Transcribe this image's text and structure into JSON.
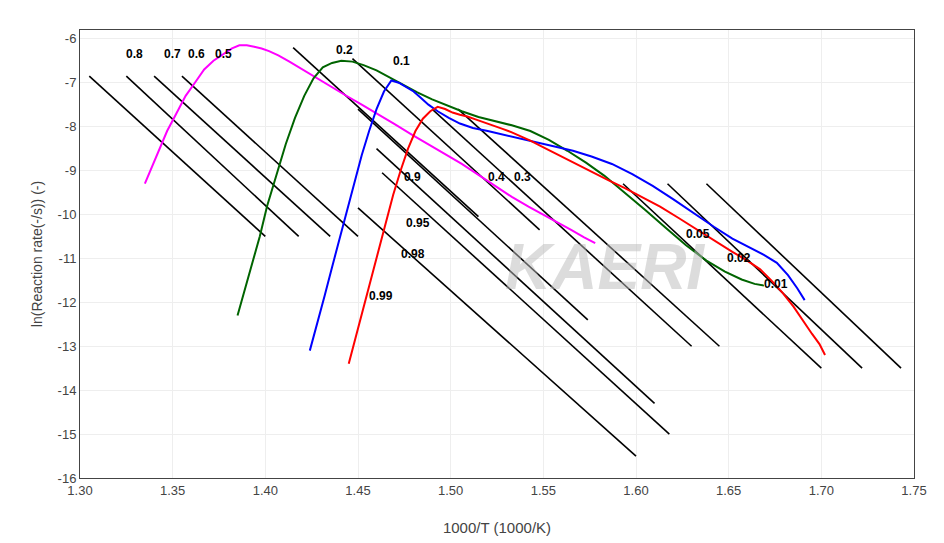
{
  "chart_data": {
    "type": "line",
    "xlabel": "1000/T (1000/K)",
    "ylabel": "ln(Reaction rate(-/s)) (-)",
    "xlim": [
      1.3,
      1.75
    ],
    "ylim": [
      -16,
      -5.8
    ],
    "xticks": [
      {
        "value": 1.3,
        "label": "1.30"
      },
      1.35,
      {
        "value": 1.4,
        "label": "1.40"
      },
      1.45,
      {
        "value": 1.5,
        "label": "1.50"
      },
      1.55,
      {
        "value": 1.6,
        "label": "1.60"
      },
      1.65,
      {
        "value": 1.7,
        "label": "1.70"
      },
      1.75
    ],
    "yticks": [
      -16,
      -15,
      -14,
      -13,
      -12,
      -11,
      -10,
      -9,
      -8,
      -7,
      -6
    ],
    "grid": true,
    "series": [
      {
        "color": "#ff00ff",
        "x": [
          1.335,
          1.338,
          1.342,
          1.347,
          1.352,
          1.357,
          1.362,
          1.367,
          1.372,
          1.377,
          1.382,
          1.386,
          1.39,
          1.394,
          1.398,
          1.402,
          1.407,
          1.413,
          1.42,
          1.427,
          1.435,
          1.443,
          1.452,
          1.461,
          1.47,
          1.479,
          1.488,
          1.497,
          1.506,
          1.515,
          1.524,
          1.533,
          1.542,
          1.55,
          1.558,
          1.565,
          1.572,
          1.578
        ],
        "values": [
          -9.3,
          -9.0,
          -8.6,
          -8.1,
          -7.7,
          -7.3,
          -7.0,
          -6.7,
          -6.5,
          -6.35,
          -6.22,
          -6.15,
          -6.15,
          -6.18,
          -6.22,
          -6.28,
          -6.38,
          -6.52,
          -6.7,
          -6.88,
          -7.08,
          -7.28,
          -7.5,
          -7.72,
          -7.95,
          -8.18,
          -8.4,
          -8.62,
          -8.85,
          -9.1,
          -9.35,
          -9.6,
          -9.82,
          -10.0,
          -10.18,
          -10.35,
          -10.52,
          -10.65
        ]
      },
      {
        "color": "#006400",
        "x": [
          1.385,
          1.389,
          1.393,
          1.397,
          1.401,
          1.406,
          1.411,
          1.416,
          1.421,
          1.426,
          1.431,
          1.436,
          1.441,
          1.447,
          1.453,
          1.46,
          1.467,
          1.474,
          1.482,
          1.49,
          1.498,
          1.506,
          1.515,
          1.524,
          1.533,
          1.543,
          1.553,
          1.563,
          1.573,
          1.583,
          1.594,
          1.605,
          1.616,
          1.627,
          1.638,
          1.648,
          1.657,
          1.664,
          1.669
        ],
        "values": [
          -12.3,
          -11.7,
          -11.1,
          -10.5,
          -9.8,
          -9.1,
          -8.4,
          -7.8,
          -7.3,
          -6.9,
          -6.65,
          -6.55,
          -6.5,
          -6.52,
          -6.6,
          -6.72,
          -6.88,
          -7.05,
          -7.22,
          -7.38,
          -7.52,
          -7.65,
          -7.78,
          -7.88,
          -7.97,
          -8.1,
          -8.3,
          -8.55,
          -8.82,
          -9.12,
          -9.5,
          -9.9,
          -10.3,
          -10.7,
          -11.05,
          -11.3,
          -11.48,
          -11.58,
          -11.62
        ]
      },
      {
        "color": "#0000ff",
        "x": [
          1.424,
          1.428,
          1.432,
          1.436,
          1.44,
          1.444,
          1.448,
          1.452,
          1.456,
          1.46,
          1.464,
          1.468,
          1.472,
          1.476,
          1.48,
          1.484,
          1.488,
          1.493,
          1.499,
          1.505,
          1.512,
          1.52,
          1.528,
          1.537,
          1.546,
          1.556,
          1.566,
          1.576,
          1.587,
          1.598,
          1.609,
          1.62,
          1.631,
          1.642,
          1.652,
          1.661,
          1.669,
          1.676,
          1.682,
          1.687,
          1.691
        ],
        "values": [
          -13.1,
          -12.5,
          -11.85,
          -11.2,
          -10.55,
          -9.9,
          -9.25,
          -8.65,
          -8.1,
          -7.6,
          -7.2,
          -6.95,
          -7.0,
          -7.1,
          -7.2,
          -7.35,
          -7.5,
          -7.65,
          -7.8,
          -7.93,
          -8.03,
          -8.1,
          -8.18,
          -8.27,
          -8.35,
          -8.45,
          -8.55,
          -8.68,
          -8.85,
          -9.08,
          -9.35,
          -9.65,
          -9.97,
          -10.28,
          -10.55,
          -10.75,
          -10.92,
          -11.1,
          -11.38,
          -11.68,
          -11.95
        ]
      },
      {
        "color": "#ff0000",
        "x": [
          1.445,
          1.449,
          1.453,
          1.457,
          1.461,
          1.465,
          1.469,
          1.473,
          1.477,
          1.481,
          1.485,
          1.489,
          1.493,
          1.497,
          1.501,
          1.505,
          1.509,
          1.513,
          1.518,
          1.523,
          1.528,
          1.533,
          1.538,
          1.543,
          1.549,
          1.555,
          1.562,
          1.569,
          1.577,
          1.585,
          1.594,
          1.603,
          1.613,
          1.623,
          1.633,
          1.643,
          1.652,
          1.66,
          1.667,
          1.673,
          1.679,
          1.685,
          1.69,
          1.695,
          1.699,
          1.702
        ],
        "values": [
          -13.4,
          -12.75,
          -12.1,
          -11.45,
          -10.8,
          -10.15,
          -9.55,
          -9.0,
          -8.5,
          -8.1,
          -7.82,
          -7.65,
          -7.55,
          -7.6,
          -7.68,
          -7.73,
          -7.77,
          -7.83,
          -7.9,
          -7.97,
          -8.05,
          -8.13,
          -8.22,
          -8.32,
          -8.45,
          -8.58,
          -8.72,
          -8.88,
          -9.05,
          -9.22,
          -9.4,
          -9.6,
          -9.82,
          -10.08,
          -10.35,
          -10.62,
          -10.85,
          -11.05,
          -11.25,
          -11.5,
          -11.78,
          -12.1,
          -12.42,
          -12.72,
          -12.95,
          -13.2
        ]
      }
    ],
    "iso_lines": [
      {
        "label": "0.8",
        "color": "#000000",
        "x": [
          1.305,
          1.4
        ],
        "values": [
          -6.85,
          -10.5
        ],
        "label_x": 1.324,
        "label_y": -6.35
      },
      {
        "label": "0.7",
        "color": "#000000",
        "x": [
          1.325,
          1.418
        ],
        "values": [
          -6.85,
          -10.5
        ],
        "label_x": 1.344,
        "label_y": -6.35
      },
      {
        "label": "0.6",
        "color": "#000000",
        "x": [
          1.34,
          1.435
        ],
        "values": [
          -6.85,
          -10.5
        ],
        "label_x": 1.357,
        "label_y": -6.35
      },
      {
        "label": "0.5",
        "color": "#000000",
        "x": [
          1.355,
          1.45
        ],
        "values": [
          -6.85,
          -10.5
        ],
        "label_x": 1.372,
        "label_y": -6.35
      },
      {
        "label": "0.2",
        "color": "#000000",
        "x": [
          1.415,
          1.515
        ],
        "values": [
          -6.2,
          -10.05
        ],
        "label_x": 1.437,
        "label_y": -6.25
      },
      {
        "label": "0.1",
        "color": "#000000",
        "x": [
          1.447,
          1.548
        ],
        "values": [
          -6.45,
          -10.35
        ],
        "label_x": 1.468,
        "label_y": -6.5
      },
      {
        "label": "0.9",
        "color": "#000000",
        "x": [
          1.45,
          1.574
        ],
        "values": [
          -7.6,
          -12.4
        ],
        "label_x": 1.474,
        "label_y": -9.15
      },
      {
        "label": "0.4",
        "color": "#000000",
        "x": [
          1.49,
          1.63
        ],
        "values": [
          -7.6,
          -13.0
        ],
        "label_x": 1.519,
        "label_y": -9.15
      },
      {
        "label": "0.3",
        "color": "#000000",
        "x": [
          1.504,
          1.645
        ],
        "values": [
          -7.6,
          -13.0
        ],
        "label_x": 1.533,
        "label_y": -9.15
      },
      {
        "label": "0.95",
        "color": "#000000",
        "x": [
          1.46,
          1.61
        ],
        "values": [
          -8.5,
          -14.3
        ],
        "label_x": 1.475,
        "label_y": -10.2
      },
      {
        "label": "0.98",
        "color": "#000000",
        "x": [
          1.463,
          1.618
        ],
        "values": [
          -9.05,
          -15.0
        ],
        "label_x": 1.472,
        "label_y": -10.9
      },
      {
        "label": "0.99",
        "color": "#000000",
        "x": [
          1.45,
          1.6
        ],
        "values": [
          -9.85,
          -15.5
        ],
        "label_x": 1.455,
        "label_y": -11.85
      },
      {
        "label": "0.05",
        "color": "#000000",
        "x": [
          1.593,
          1.7
        ],
        "values": [
          -9.3,
          -13.5
        ],
        "label_x": 1.626,
        "label_y": -10.45
      },
      {
        "label": "0.02",
        "color": "#000000",
        "x": [
          1.617,
          1.722
        ],
        "values": [
          -9.3,
          -13.5
        ],
        "label_x": 1.648,
        "label_y": -11.0
      },
      {
        "label": "0.01",
        "color": "#000000",
        "x": [
          1.638,
          1.743
        ],
        "values": [
          -9.3,
          -13.5
        ],
        "label_x": 1.668,
        "label_y": -11.58
      }
    ],
    "annotations": [
      {
        "text": "KAERI"
      }
    ]
  }
}
